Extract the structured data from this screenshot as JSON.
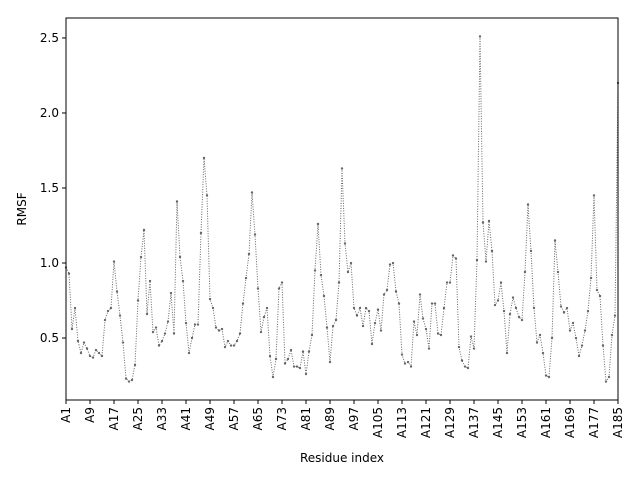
{
  "chart_data": {
    "type": "line",
    "xlabel": "Residue index",
    "ylabel": "RMSF",
    "categories": [
      "A1",
      null,
      null,
      null,
      null,
      null,
      null,
      null,
      "A9",
      null,
      null,
      null,
      null,
      null,
      null,
      null,
      "A17",
      null,
      null,
      null,
      null,
      null,
      null,
      null,
      "A25",
      null,
      null,
      null,
      null,
      null,
      null,
      null,
      "A33",
      null,
      null,
      null,
      null,
      null,
      null,
      null,
      "A41",
      null,
      null,
      null,
      null,
      null,
      null,
      null,
      "A49",
      null,
      null,
      null,
      null,
      null,
      null,
      null,
      "A57",
      null,
      null,
      null,
      null,
      null,
      null,
      null,
      "A65",
      null,
      null,
      null,
      null,
      null,
      null,
      null,
      "A73",
      null,
      null,
      null,
      null,
      null,
      null,
      null,
      "A81",
      null,
      null,
      null,
      null,
      null,
      null,
      null,
      "A89",
      null,
      null,
      null,
      null,
      null,
      null,
      null,
      "A97",
      null,
      null,
      null,
      null,
      null,
      null,
      null,
      "A105",
      null,
      null,
      null,
      null,
      null,
      null,
      null,
      "A113",
      null,
      null,
      null,
      null,
      null,
      null,
      null,
      "A121",
      null,
      null,
      null,
      null,
      null,
      null,
      null,
      "A129",
      null,
      null,
      null,
      null,
      null,
      null,
      null,
      "A137",
      null,
      null,
      null,
      null,
      null,
      null,
      null,
      "A145",
      null,
      null,
      null,
      null,
      null,
      null,
      null,
      "A153",
      null,
      null,
      null,
      null,
      null,
      null,
      null,
      "A161",
      null,
      null,
      null,
      null,
      null,
      null,
      null,
      "A169",
      null,
      null,
      null,
      null,
      null,
      null,
      null,
      "A177",
      null,
      null,
      null,
      null,
      null,
      null,
      null,
      "A185"
    ],
    "values": [
      0.97,
      0.93,
      0.56,
      0.7,
      0.48,
      0.4,
      0.47,
      0.43,
      0.38,
      0.37,
      0.42,
      0.4,
      0.38,
      0.62,
      0.68,
      0.7,
      1.01,
      0.81,
      0.65,
      0.47,
      0.23,
      0.21,
      0.22,
      0.32,
      0.75,
      1.04,
      1.22,
      0.66,
      0.88,
      0.54,
      0.57,
      0.45,
      0.48,
      0.53,
      0.61,
      0.8,
      0.53,
      1.41,
      1.04,
      0.88,
      0.6,
      0.4,
      0.5,
      0.59,
      0.59,
      1.2,
      1.7,
      1.45,
      0.76,
      0.7,
      0.57,
      0.55,
      0.56,
      0.44,
      0.48,
      0.45,
      0.45,
      0.48,
      0.53,
      0.73,
      0.9,
      1.06,
      1.47,
      1.19,
      0.83,
      0.54,
      0.64,
      0.7,
      0.38,
      0.24,
      0.36,
      0.83,
      0.87,
      0.33,
      0.36,
      0.42,
      0.31,
      0.31,
      0.3,
      0.41,
      0.26,
      0.41,
      0.52,
      0.95,
      1.26,
      0.92,
      0.78,
      0.57,
      0.34,
      0.58,
      0.62,
      0.87,
      1.63,
      1.13,
      0.94,
      1.0,
      0.7,
      0.65,
      0.7,
      0.58,
      0.7,
      0.68,
      0.46,
      0.6,
      0.69,
      0.55,
      0.79,
      0.82,
      0.99,
      1.0,
      0.81,
      0.73,
      0.39,
      0.33,
      0.34,
      0.31,
      0.61,
      0.52,
      0.79,
      0.63,
      0.56,
      0.43,
      0.73,
      0.73,
      0.53,
      0.52,
      0.7,
      0.87,
      0.87,
      1.05,
      1.03,
      0.44,
      0.35,
      0.31,
      0.3,
      0.51,
      0.43,
      1.02,
      2.51,
      1.27,
      1.01,
      1.28,
      1.08,
      0.72,
      0.75,
      0.87,
      0.68,
      0.4,
      0.66,
      0.77,
      0.7,
      0.64,
      0.62,
      0.94,
      1.39,
      1.08,
      0.7,
      0.47,
      0.52,
      0.4,
      0.25,
      0.24,
      0.5,
      1.15,
      0.94,
      0.71,
      0.67,
      0.7,
      0.55,
      0.6,
      0.5,
      0.38,
      0.45,
      0.55,
      0.68,
      0.9,
      1.45,
      0.82,
      0.78,
      0.45,
      0.21,
      0.24,
      0.52,
      0.65,
      2.2
    ],
    "color": "#666666",
    "ylim": [
      0.087,
      2.633
    ],
    "yticks": [
      {
        "value": 0.5,
        "label": "0.5"
      },
      {
        "value": 1.0,
        "label": "1.0"
      },
      {
        "value": 1.5,
        "label": "1.5"
      },
      {
        "value": 2.0,
        "label": "2.0"
      },
      {
        "value": 2.5,
        "label": "2.5"
      }
    ]
  }
}
